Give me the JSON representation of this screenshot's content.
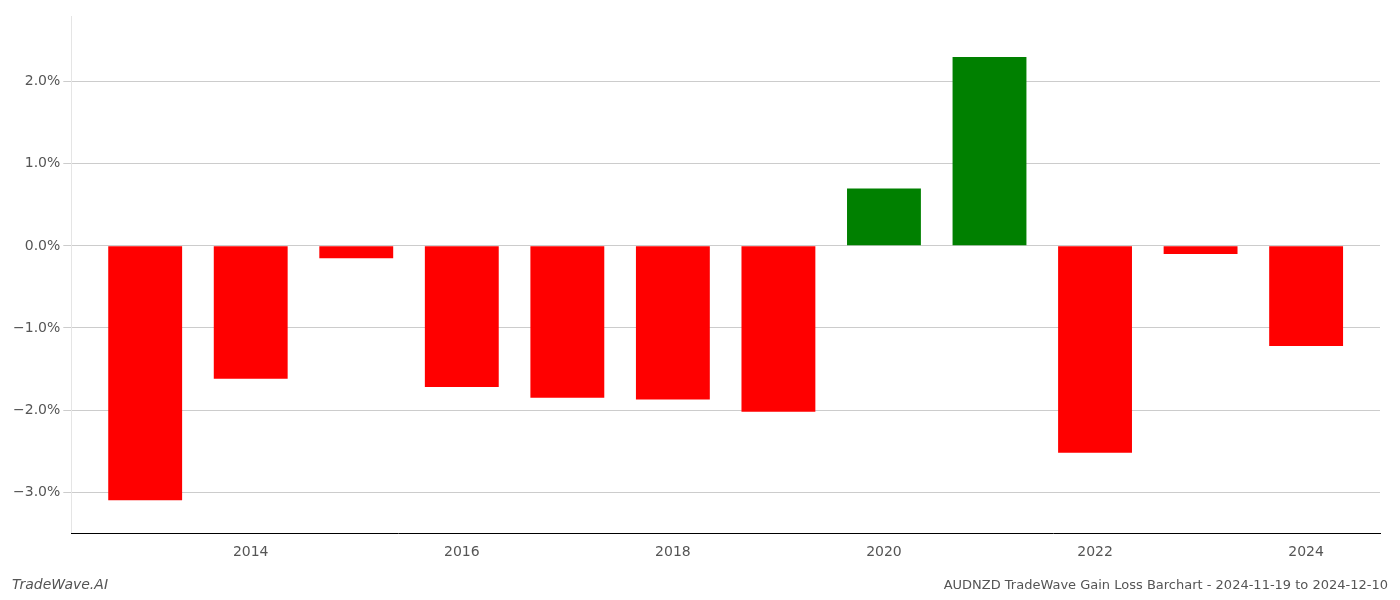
{
  "chart_data": {
    "type": "bar",
    "title": "AUDNZD TradeWave Gain Loss Barchart - 2024-11-19 to 2024-12-10",
    "annotations": [
      "TradeWave.AI"
    ],
    "x": [
      2013,
      2014,
      2015,
      2016,
      2017,
      2018,
      2019,
      2020,
      2021,
      2022,
      2023,
      2024
    ],
    "values": [
      -3.1,
      -1.62,
      -0.15,
      -1.72,
      -1.85,
      -1.87,
      -2.02,
      0.7,
      2.3,
      -2.52,
      -0.1,
      -1.22
    ],
    "colors": [
      "#ff0000",
      "#ff0000",
      "#ff0000",
      "#ff0000",
      "#ff0000",
      "#ff0000",
      "#ff0000",
      "#008000",
      "#008000",
      "#ff0000",
      "#ff0000",
      "#ff0000"
    ],
    "xlim": [
      2012.3,
      2024.7
    ],
    "xticks": [
      2014,
      2016,
      2018,
      2020,
      2022,
      2024
    ],
    "ylim": [
      -3.5,
      2.8
    ],
    "yticks": [
      {
        "value": -3.0,
        "label": "−3.0%"
      },
      {
        "value": -2.0,
        "label": "−2.0%"
      },
      {
        "value": -1.0,
        "label": "−1.0%"
      },
      {
        "value": 0.0,
        "label": "0.0%"
      },
      {
        "value": 1.0,
        "label": "1.0%"
      },
      {
        "value": 2.0,
        "label": "2.0%"
      }
    ],
    "grid": true
  }
}
